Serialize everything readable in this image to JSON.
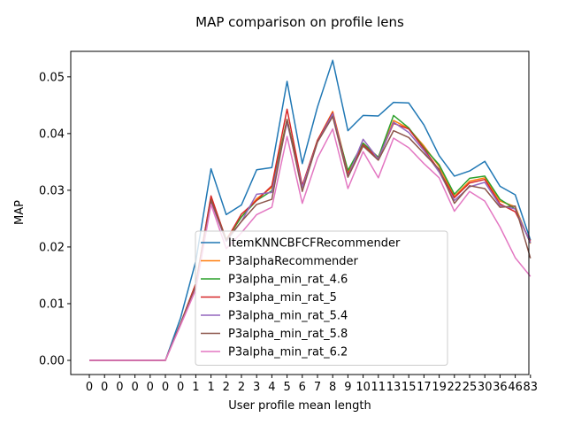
{
  "chart_data": {
    "type": "line",
    "title": "MAP comparison on profile lens",
    "xlabel": "User profile mean length",
    "ylabel": "MAP",
    "x_tick_labels": [
      "0",
      "0",
      "0",
      "0",
      "0",
      "0",
      "0",
      "1",
      "1",
      "2",
      "2",
      "3",
      "4",
      "5",
      "6",
      "7",
      "8",
      "9",
      "10",
      "11",
      "13",
      "15",
      "17",
      "19",
      "22",
      "25",
      "30",
      "36",
      "46",
      "83"
    ],
    "y_ticks": [
      "0.00",
      "0.01",
      "0.02",
      "0.03",
      "0.04",
      "0.05"
    ],
    "ylim": [
      -0.0025,
      0.0545
    ],
    "grid": false,
    "legend_position": "lower-center",
    "series": [
      {
        "name": "ItemKNNCBFCFRecommender",
        "color": "#1f77b4",
        "values": [
          0,
          0,
          0,
          0,
          0,
          0,
          0.0075,
          0.0175,
          0.0338,
          0.0257,
          0.0274,
          0.0336,
          0.034,
          0.0492,
          0.0347,
          0.0447,
          0.0529,
          0.0405,
          0.0432,
          0.0431,
          0.0455,
          0.0454,
          0.0415,
          0.0361,
          0.0325,
          0.0334,
          0.0351,
          0.0307,
          0.0292,
          0.0212
        ]
      },
      {
        "name": "P3alphaRecommender",
        "color": "#ff7f0e",
        "values": [
          0,
          0,
          0,
          0,
          0,
          0,
          0.0065,
          0.0135,
          0.0285,
          0.0212,
          0.0253,
          0.0285,
          0.0305,
          0.0425,
          0.0307,
          0.0388,
          0.0439,
          0.0332,
          0.0383,
          0.0358,
          0.0423,
          0.0409,
          0.0378,
          0.0342,
          0.0289,
          0.0316,
          0.0322,
          0.0281,
          0.0271,
          0.0206
        ]
      },
      {
        "name": "P3alpha_min_rat_4.6",
        "color": "#2ca02c",
        "values": [
          0,
          0,
          0,
          0,
          0,
          0,
          0.0065,
          0.0135,
          0.0288,
          0.0213,
          0.0253,
          0.0282,
          0.0299,
          0.0425,
          0.0307,
          0.0388,
          0.0433,
          0.0335,
          0.0383,
          0.0358,
          0.0432,
          0.041,
          0.0375,
          0.0345,
          0.0293,
          0.0321,
          0.0325,
          0.0284,
          0.0267,
          0.0207
        ]
      },
      {
        "name": "P3alpha_min_rat_5",
        "color": "#d62728",
        "values": [
          0,
          0,
          0,
          0,
          0,
          0,
          0.0065,
          0.0135,
          0.029,
          0.0212,
          0.0258,
          0.0282,
          0.0308,
          0.0443,
          0.0308,
          0.0388,
          0.0437,
          0.0328,
          0.038,
          0.0356,
          0.0418,
          0.0408,
          0.0373,
          0.0335,
          0.0287,
          0.0313,
          0.0319,
          0.0276,
          0.0262,
          0.021
        ]
      },
      {
        "name": "P3alpha_min_rat_5.4",
        "color": "#9467bd",
        "values": [
          0,
          0,
          0,
          0,
          0,
          0,
          0.0065,
          0.013,
          0.028,
          0.021,
          0.0245,
          0.0293,
          0.0296,
          0.042,
          0.0305,
          0.0385,
          0.0435,
          0.0324,
          0.039,
          0.0355,
          0.042,
          0.0402,
          0.037,
          0.0332,
          0.0282,
          0.0306,
          0.0314,
          0.0273,
          0.0267,
          0.0207
        ]
      },
      {
        "name": "P3alpha_min_rat_5.8",
        "color": "#8c564b",
        "values": [
          0,
          0,
          0,
          0,
          0,
          0,
          0.0065,
          0.013,
          0.0282,
          0.0212,
          0.0245,
          0.0275,
          0.0284,
          0.0425,
          0.0298,
          0.0385,
          0.043,
          0.0323,
          0.0378,
          0.0353,
          0.0405,
          0.0393,
          0.0365,
          0.0337,
          0.0277,
          0.0308,
          0.0303,
          0.027,
          0.0272,
          0.018
        ]
      },
      {
        "name": "P3alpha_min_rat_6.2",
        "color": "#e377c2",
        "values": [
          0,
          0,
          0,
          0,
          0,
          0,
          0.0062,
          0.0125,
          0.0275,
          0.0197,
          0.0225,
          0.0257,
          0.027,
          0.0395,
          0.0277,
          0.0357,
          0.0408,
          0.0303,
          0.0368,
          0.0322,
          0.0392,
          0.0375,
          0.0347,
          0.0322,
          0.0263,
          0.0298,
          0.0281,
          0.0235,
          0.0181,
          0.0148
        ]
      }
    ]
  }
}
